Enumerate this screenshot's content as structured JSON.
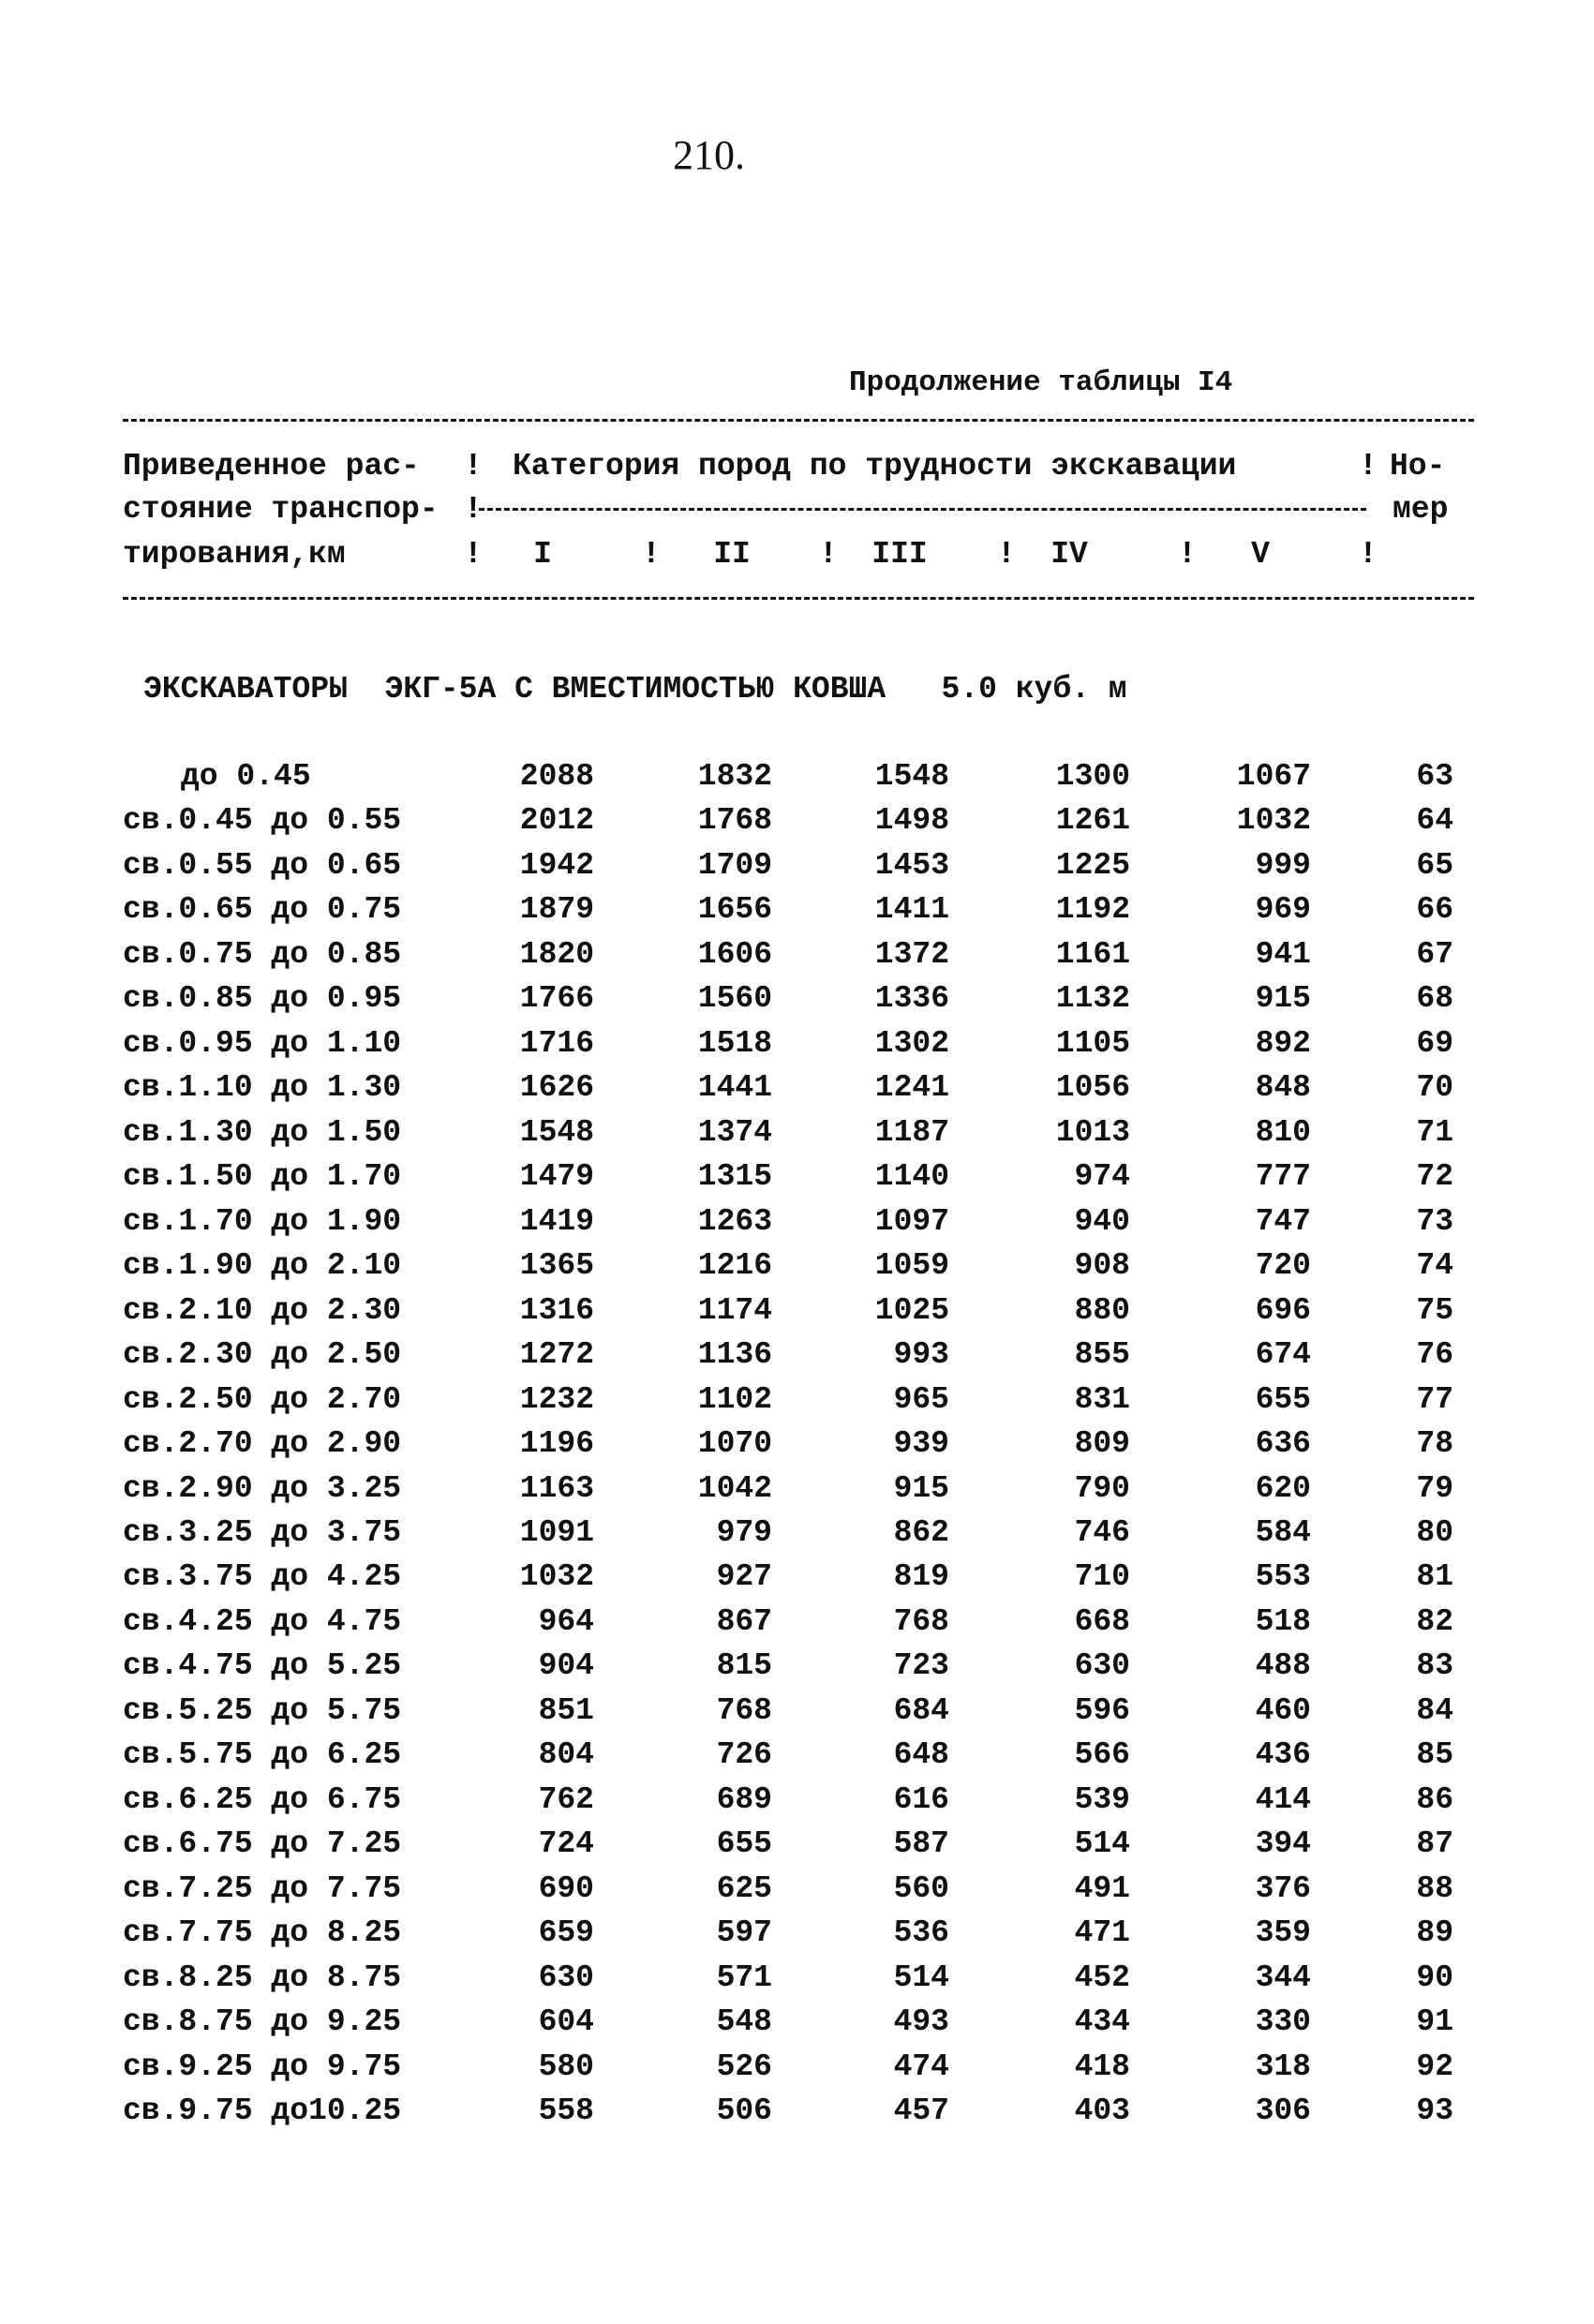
{
  "page_number": "210.",
  "caption": "Продолжение таблицы I4",
  "header": {
    "col1_lines": [
      "Приведенное рас-",
      "стояние транспор-",
      "тирования,км"
    ],
    "group_title": "Категория пород по трудности экскавации",
    "categories": [
      "I",
      "II",
      "III",
      "IV",
      "V"
    ],
    "num_lines": [
      "Но-",
      "мер"
    ],
    "separator": "!"
  },
  "section_title": "ЭКСКАВАТОРЫ  ЭКГ-5А С ВМЕСТИМОСТЬЮ КОВША   5.0 куб. м",
  "rows": [
    {
      "label": "до 0.45",
      "v": [
        "2088",
        "1832",
        "1548",
        "1300",
        "1067"
      ],
      "n": "63"
    },
    {
      "label": "св.0.45 до 0.55",
      "v": [
        "2012",
        "1768",
        "1498",
        "1261",
        "1032"
      ],
      "n": "64"
    },
    {
      "label": "св.0.55 до 0.65",
      "v": [
        "1942",
        "1709",
        "1453",
        "1225",
        "999"
      ],
      "n": "65"
    },
    {
      "label": "св.0.65 до 0.75",
      "v": [
        "1879",
        "1656",
        "1411",
        "1192",
        "969"
      ],
      "n": "66"
    },
    {
      "label": "св.0.75 до 0.85",
      "v": [
        "1820",
        "1606",
        "1372",
        "1161",
        "941"
      ],
      "n": "67"
    },
    {
      "label": "св.0.85 до 0.95",
      "v": [
        "1766",
        "1560",
        "1336",
        "1132",
        "915"
      ],
      "n": "68"
    },
    {
      "label": "св.0.95 до 1.10",
      "v": [
        "1716",
        "1518",
        "1302",
        "1105",
        "892"
      ],
      "n": "69"
    },
    {
      "label": "св.1.10 до 1.30",
      "v": [
        "1626",
        "1441",
        "1241",
        "1056",
        "848"
      ],
      "n": "70"
    },
    {
      "label": "св.1.30 до 1.50",
      "v": [
        "1548",
        "1374",
        "1187",
        "1013",
        "810"
      ],
      "n": "71"
    },
    {
      "label": "св.1.50 до 1.70",
      "v": [
        "1479",
        "1315",
        "1140",
        "974",
        "777"
      ],
      "n": "72"
    },
    {
      "label": "св.1.70 до 1.90",
      "v": [
        "1419",
        "1263",
        "1097",
        "940",
        "747"
      ],
      "n": "73"
    },
    {
      "label": "св.1.90 до 2.10",
      "v": [
        "1365",
        "1216",
        "1059",
        "908",
        "720"
      ],
      "n": "74"
    },
    {
      "label": "св.2.10 до 2.30",
      "v": [
        "1316",
        "1174",
        "1025",
        "880",
        "696"
      ],
      "n": "75"
    },
    {
      "label": "св.2.30 до 2.50",
      "v": [
        "1272",
        "1136",
        "993",
        "855",
        "674"
      ],
      "n": "76"
    },
    {
      "label": "св.2.50 до 2.70",
      "v": [
        "1232",
        "1102",
        "965",
        "831",
        "655"
      ],
      "n": "77"
    },
    {
      "label": "св.2.70 до 2.90",
      "v": [
        "1196",
        "1070",
        "939",
        "809",
        "636"
      ],
      "n": "78"
    },
    {
      "label": "св.2.90 до 3.25",
      "v": [
        "1163",
        "1042",
        "915",
        "790",
        "620"
      ],
      "n": "79"
    },
    {
      "label": "св.3.25 до 3.75",
      "v": [
        "1091",
        "979",
        "862",
        "746",
        "584"
      ],
      "n": "80"
    },
    {
      "label": "св.3.75 до 4.25",
      "v": [
        "1032",
        "927",
        "819",
        "710",
        "553"
      ],
      "n": "81"
    },
    {
      "label": "св.4.25 до 4.75",
      "v": [
        "964",
        "867",
        "768",
        "668",
        "518"
      ],
      "n": "82"
    },
    {
      "label": "св.4.75 до 5.25",
      "v": [
        "904",
        "815",
        "723",
        "630",
        "488"
      ],
      "n": "83"
    },
    {
      "label": "св.5.25 до 5.75",
      "v": [
        "851",
        "768",
        "684",
        "596",
        "460"
      ],
      "n": "84"
    },
    {
      "label": "св.5.75 до 6.25",
      "v": [
        "804",
        "726",
        "648",
        "566",
        "436"
      ],
      "n": "85"
    },
    {
      "label": "св.6.25 до 6.75",
      "v": [
        "762",
        "689",
        "616",
        "539",
        "414"
      ],
      "n": "86"
    },
    {
      "label": "св.6.75 до 7.25",
      "v": [
        "724",
        "655",
        "587",
        "514",
        "394"
      ],
      "n": "87"
    },
    {
      "label": "св.7.25 до 7.75",
      "v": [
        "690",
        "625",
        "560",
        "491",
        "376"
      ],
      "n": "88"
    },
    {
      "label": "св.7.75 до 8.25",
      "v": [
        "659",
        "597",
        "536",
        "471",
        "359"
      ],
      "n": "89"
    },
    {
      "label": "св.8.25 до 8.75",
      "v": [
        "630",
        "571",
        "514",
        "452",
        "344"
      ],
      "n": "90"
    },
    {
      "label": "св.8.75 до 9.25",
      "v": [
        "604",
        "548",
        "493",
        "434",
        "330"
      ],
      "n": "91"
    },
    {
      "label": "св.9.25 до 9.75",
      "v": [
        "580",
        "526",
        "474",
        "418",
        "318"
      ],
      "n": "92"
    },
    {
      "label": "св.9.75 до10.25",
      "v": [
        "558",
        "506",
        "457",
        "403",
        "306"
      ],
      "n": "93"
    }
  ]
}
